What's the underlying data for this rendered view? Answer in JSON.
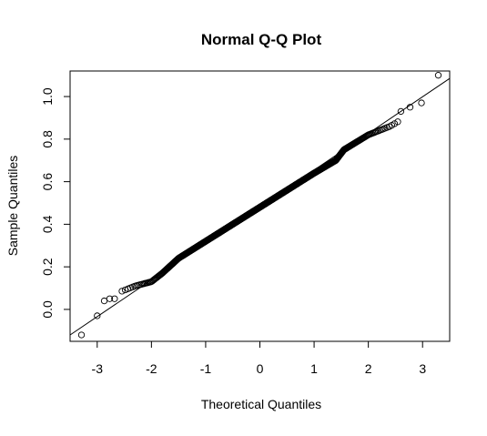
{
  "chart_data": {
    "type": "scatter",
    "title": "Normal Q-Q Plot",
    "xlabel": "Theoretical Quantiles",
    "ylabel": "Sample Quantiles",
    "xlim": [
      -3.5,
      3.5
    ],
    "ylim": [
      -0.15,
      1.12
    ],
    "x_ticks": [
      "-3",
      "-2",
      "-1",
      "0",
      "1",
      "2",
      "3"
    ],
    "x_tick_values": [
      -3,
      -2,
      -1,
      0,
      1,
      2,
      3
    ],
    "y_ticks": [
      "0.0",
      "0.2",
      "0.4",
      "0.6",
      "0.8",
      "1.0"
    ],
    "y_tick_values": [
      0.0,
      0.2,
      0.4,
      0.6,
      0.8,
      1.0
    ],
    "reference_line": {
      "x": [
        -3.5,
        3.5
      ],
      "y": [
        -0.12,
        1.085
      ]
    },
    "sample_size": 1000,
    "notable_points": [
      {
        "x": -3.29,
        "y": -0.12
      },
      {
        "x": -3.0,
        "y": -0.03
      },
      {
        "x": -2.87,
        "y": 0.04
      },
      {
        "x": -2.77,
        "y": 0.05
      },
      {
        "x": -2.68,
        "y": 0.05
      },
      {
        "x": 2.6,
        "y": 0.93
      },
      {
        "x": 2.77,
        "y": 0.95
      },
      {
        "x": 2.98,
        "y": 0.97
      },
      {
        "x": 3.29,
        "y": 1.1
      }
    ],
    "profile": [
      {
        "x": -2.6,
        "y": 0.08
      },
      {
        "x": -2.3,
        "y": 0.11
      },
      {
        "x": -2.0,
        "y": 0.13
      },
      {
        "x": -1.8,
        "y": 0.17
      },
      {
        "x": -1.5,
        "y": 0.24
      },
      {
        "x": -1.0,
        "y": 0.32
      },
      {
        "x": -0.5,
        "y": 0.4
      },
      {
        "x": 0.0,
        "y": 0.48
      },
      {
        "x": 0.5,
        "y": 0.56
      },
      {
        "x": 1.0,
        "y": 0.64
      },
      {
        "x": 1.4,
        "y": 0.7
      },
      {
        "x": 1.55,
        "y": 0.75
      },
      {
        "x": 2.0,
        "y": 0.82
      },
      {
        "x": 2.4,
        "y": 0.86
      },
      {
        "x": 2.6,
        "y": 0.89
      }
    ],
    "marker": "open-circle",
    "grid": false,
    "legend": "none",
    "colors": {
      "points": "#000000",
      "line": "#000000",
      "background": "#ffffff"
    }
  }
}
